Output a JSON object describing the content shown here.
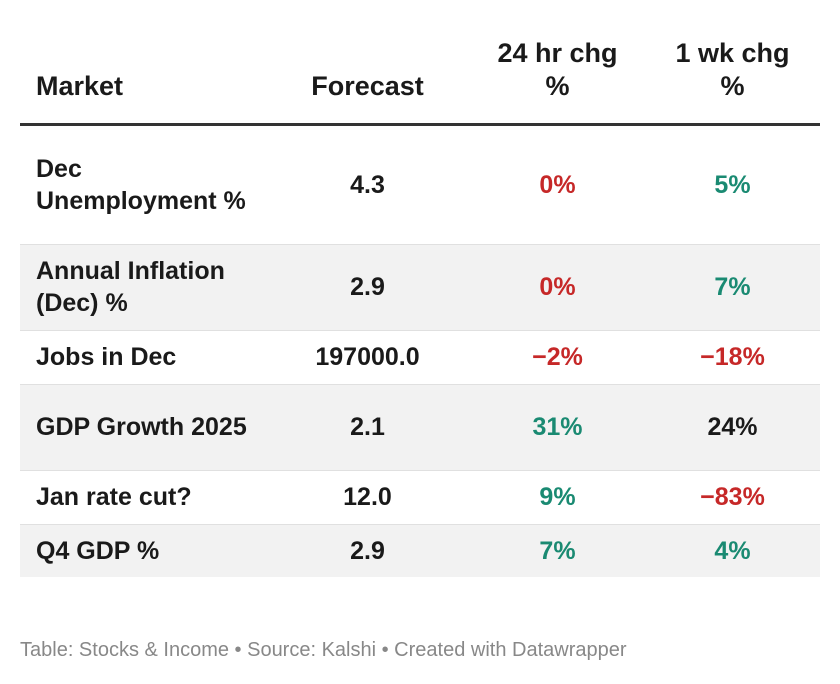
{
  "colors": {
    "negative": "#c62828",
    "positive": "#1a8a72",
    "neutral": "#1a1a1a"
  },
  "chart_data": {
    "type": "table",
    "columns": [
      "Market",
      "Forecast",
      "24 hr chg %",
      "1 wk chg %"
    ],
    "rows": [
      {
        "market": "Dec Unemployment %",
        "forecast": "4.3",
        "chg_24h": "0%",
        "chg_24h_color": "negative",
        "chg_1wk": "5%",
        "chg_1wk_color": "positive"
      },
      {
        "market": "Annual Inflation (Dec) %",
        "forecast": "2.9",
        "chg_24h": "0%",
        "chg_24h_color": "negative",
        "chg_1wk": "7%",
        "chg_1wk_color": "positive"
      },
      {
        "market": "Jobs in Dec",
        "forecast": "197000.0",
        "chg_24h": "−2%",
        "chg_24h_color": "negative",
        "chg_1wk": "−18%",
        "chg_1wk_color": "negative"
      },
      {
        "market": "GDP Growth 2025",
        "forecast": "2.1",
        "chg_24h": "31%",
        "chg_24h_color": "positive",
        "chg_1wk": "24%",
        "chg_1wk_color": "neutral"
      },
      {
        "market": "Jan rate cut?",
        "forecast": "12.0",
        "chg_24h": "9%",
        "chg_24h_color": "positive",
        "chg_1wk": "−83%",
        "chg_1wk_color": "negative"
      },
      {
        "market": "Q4 GDP %",
        "forecast": "2.9",
        "chg_24h": "7%",
        "chg_24h_color": "positive",
        "chg_1wk": "4%",
        "chg_1wk_color": "positive"
      }
    ]
  },
  "footer": "Table: Stocks & Income • Source: Kalshi • Created with Datawrapper"
}
